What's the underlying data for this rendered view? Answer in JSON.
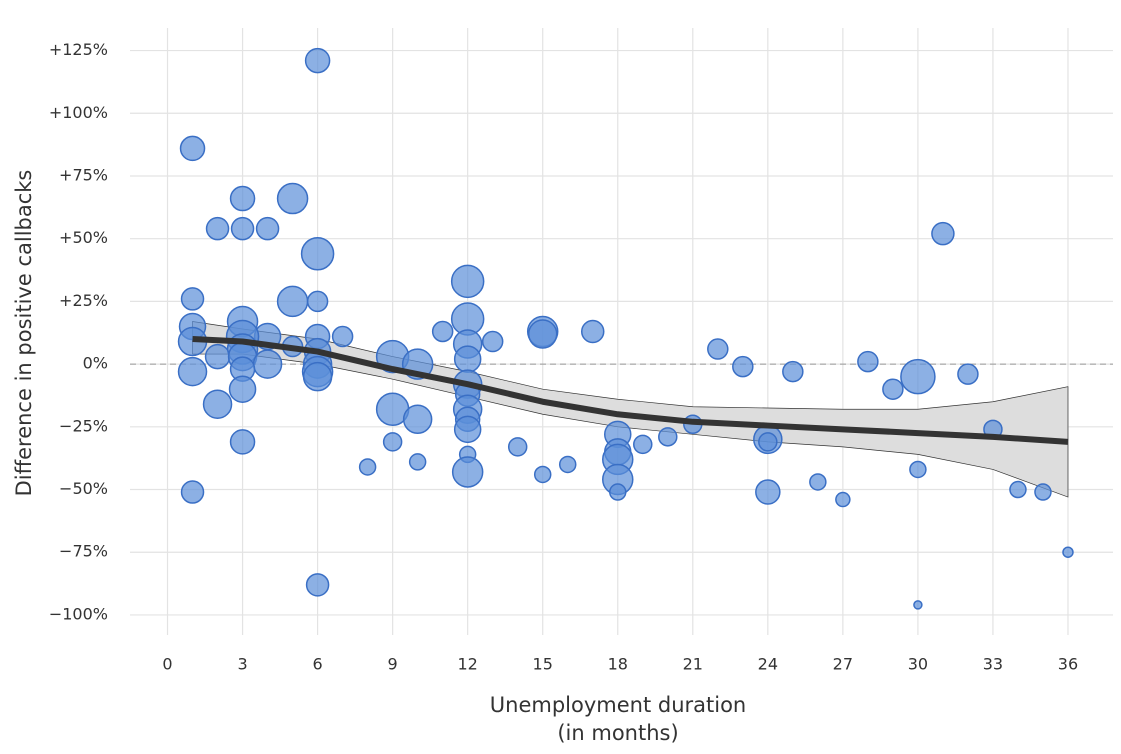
{
  "chart_data": {
    "type": "scatter",
    "xlabel": [
      "Unemployment duration",
      "(in months)"
    ],
    "ylabel": "Difference in positive callbacks",
    "xlim": [
      -1.5,
      37.8
    ],
    "ylim": [
      -108,
      134
    ],
    "xticks": [
      0,
      3,
      6,
      9,
      12,
      15,
      18,
      21,
      24,
      27,
      30,
      33,
      36
    ],
    "yticks": [
      {
        "value": -100,
        "label": "−100%"
      },
      {
        "value": -75,
        "label": "−75%"
      },
      {
        "value": -50,
        "label": "−50%"
      },
      {
        "value": -25,
        "label": "−25%"
      },
      {
        "value": 0,
        "label": "0%"
      },
      {
        "value": 25,
        "label": "+25%"
      },
      {
        "value": 50,
        "label": "+50%"
      },
      {
        "value": 75,
        "label": "+75%"
      },
      {
        "value": 100,
        "label": "+100%"
      },
      {
        "value": 125,
        "label": "+125%"
      }
    ],
    "grid": true,
    "points": {
      "color": "#5b8fd9",
      "edge": "#3a6fc5",
      "x": [
        6,
        1,
        3,
        5,
        2,
        3,
        4,
        6,
        31,
        1,
        5,
        6,
        12,
        12,
        1,
        3,
        4,
        6,
        7,
        11,
        15,
        15,
        17,
        1,
        3,
        3,
        5,
        6,
        12,
        13,
        2,
        3,
        4,
        6,
        9,
        10,
        12,
        1,
        3,
        6,
        6,
        22,
        23,
        25,
        28,
        30,
        32,
        29,
        3,
        12,
        12,
        2,
        9,
        10,
        12,
        12,
        12,
        21,
        20,
        19,
        18,
        18,
        18,
        18,
        18,
        24,
        24,
        33,
        3,
        9,
        10,
        8,
        12,
        12,
        14,
        15,
        16,
        24,
        26,
        27,
        30,
        34,
        35,
        1,
        6,
        36,
        30
      ],
      "values": [
        121,
        86,
        66,
        66,
        54,
        54,
        54,
        44,
        52,
        26,
        25,
        25,
        33,
        18,
        15,
        17,
        11,
        11,
        11,
        13,
        13,
        12,
        13,
        9,
        11,
        6,
        7,
        5,
        8,
        9,
        3,
        3,
        0,
        0,
        3,
        0,
        2,
        -3,
        -2,
        -3,
        -5,
        6,
        -1,
        -3,
        1,
        -5,
        -4,
        -10,
        -10,
        -8,
        -12,
        -16,
        -18,
        -22,
        -18,
        -22,
        -26,
        -24,
        -29,
        -32,
        -28,
        -35,
        -38,
        -46,
        -51,
        -30,
        -31,
        -26,
        -31,
        -31,
        -39,
        -41,
        -36,
        -43,
        -33,
        -44,
        -40,
        -51,
        -47,
        -54,
        -42,
        -50,
        -51,
        -51,
        -88,
        -75,
        -96
      ],
      "sizes": [
        12,
        12,
        12,
        15,
        11,
        11,
        11,
        16,
        11,
        11,
        15,
        10,
        16,
        16,
        13,
        15,
        13,
        12,
        10,
        10,
        15,
        14,
        11,
        14,
        16,
        15,
        10,
        13,
        14,
        10,
        12,
        14,
        14,
        14,
        16,
        15,
        13,
        14,
        12,
        15,
        14,
        10,
        10,
        10,
        10,
        17,
        10,
        10,
        13,
        14,
        12,
        14,
        16,
        14,
        14,
        12,
        13,
        9,
        9,
        9,
        13,
        13,
        15,
        15,
        8,
        14,
        9,
        9,
        12,
        9,
        8,
        8,
        8,
        15,
        9,
        8,
        8,
        12,
        8,
        7,
        8,
        8,
        8,
        11,
        11,
        5,
        4
      ]
    },
    "fit": {
      "color": "#333333",
      "band": "#dddddd",
      "x": [
        1,
        3,
        6,
        9,
        12,
        15,
        18,
        21,
        24,
        27,
        30,
        33,
        36
      ],
      "values": [
        10,
        9,
        5,
        -2,
        -8,
        -15,
        -20,
        -23,
        -24.5,
        -26,
        -27.5,
        -29,
        -31
      ],
      "lower": [
        4,
        4,
        0,
        -6,
        -13,
        -20,
        -25,
        -28,
        -31,
        -33,
        -36,
        -42,
        -53
      ],
      "upper": [
        17,
        14,
        10,
        3,
        -3,
        -10,
        -14,
        -17,
        -17.5,
        -18,
        -18,
        -15,
        -9
      ]
    }
  }
}
